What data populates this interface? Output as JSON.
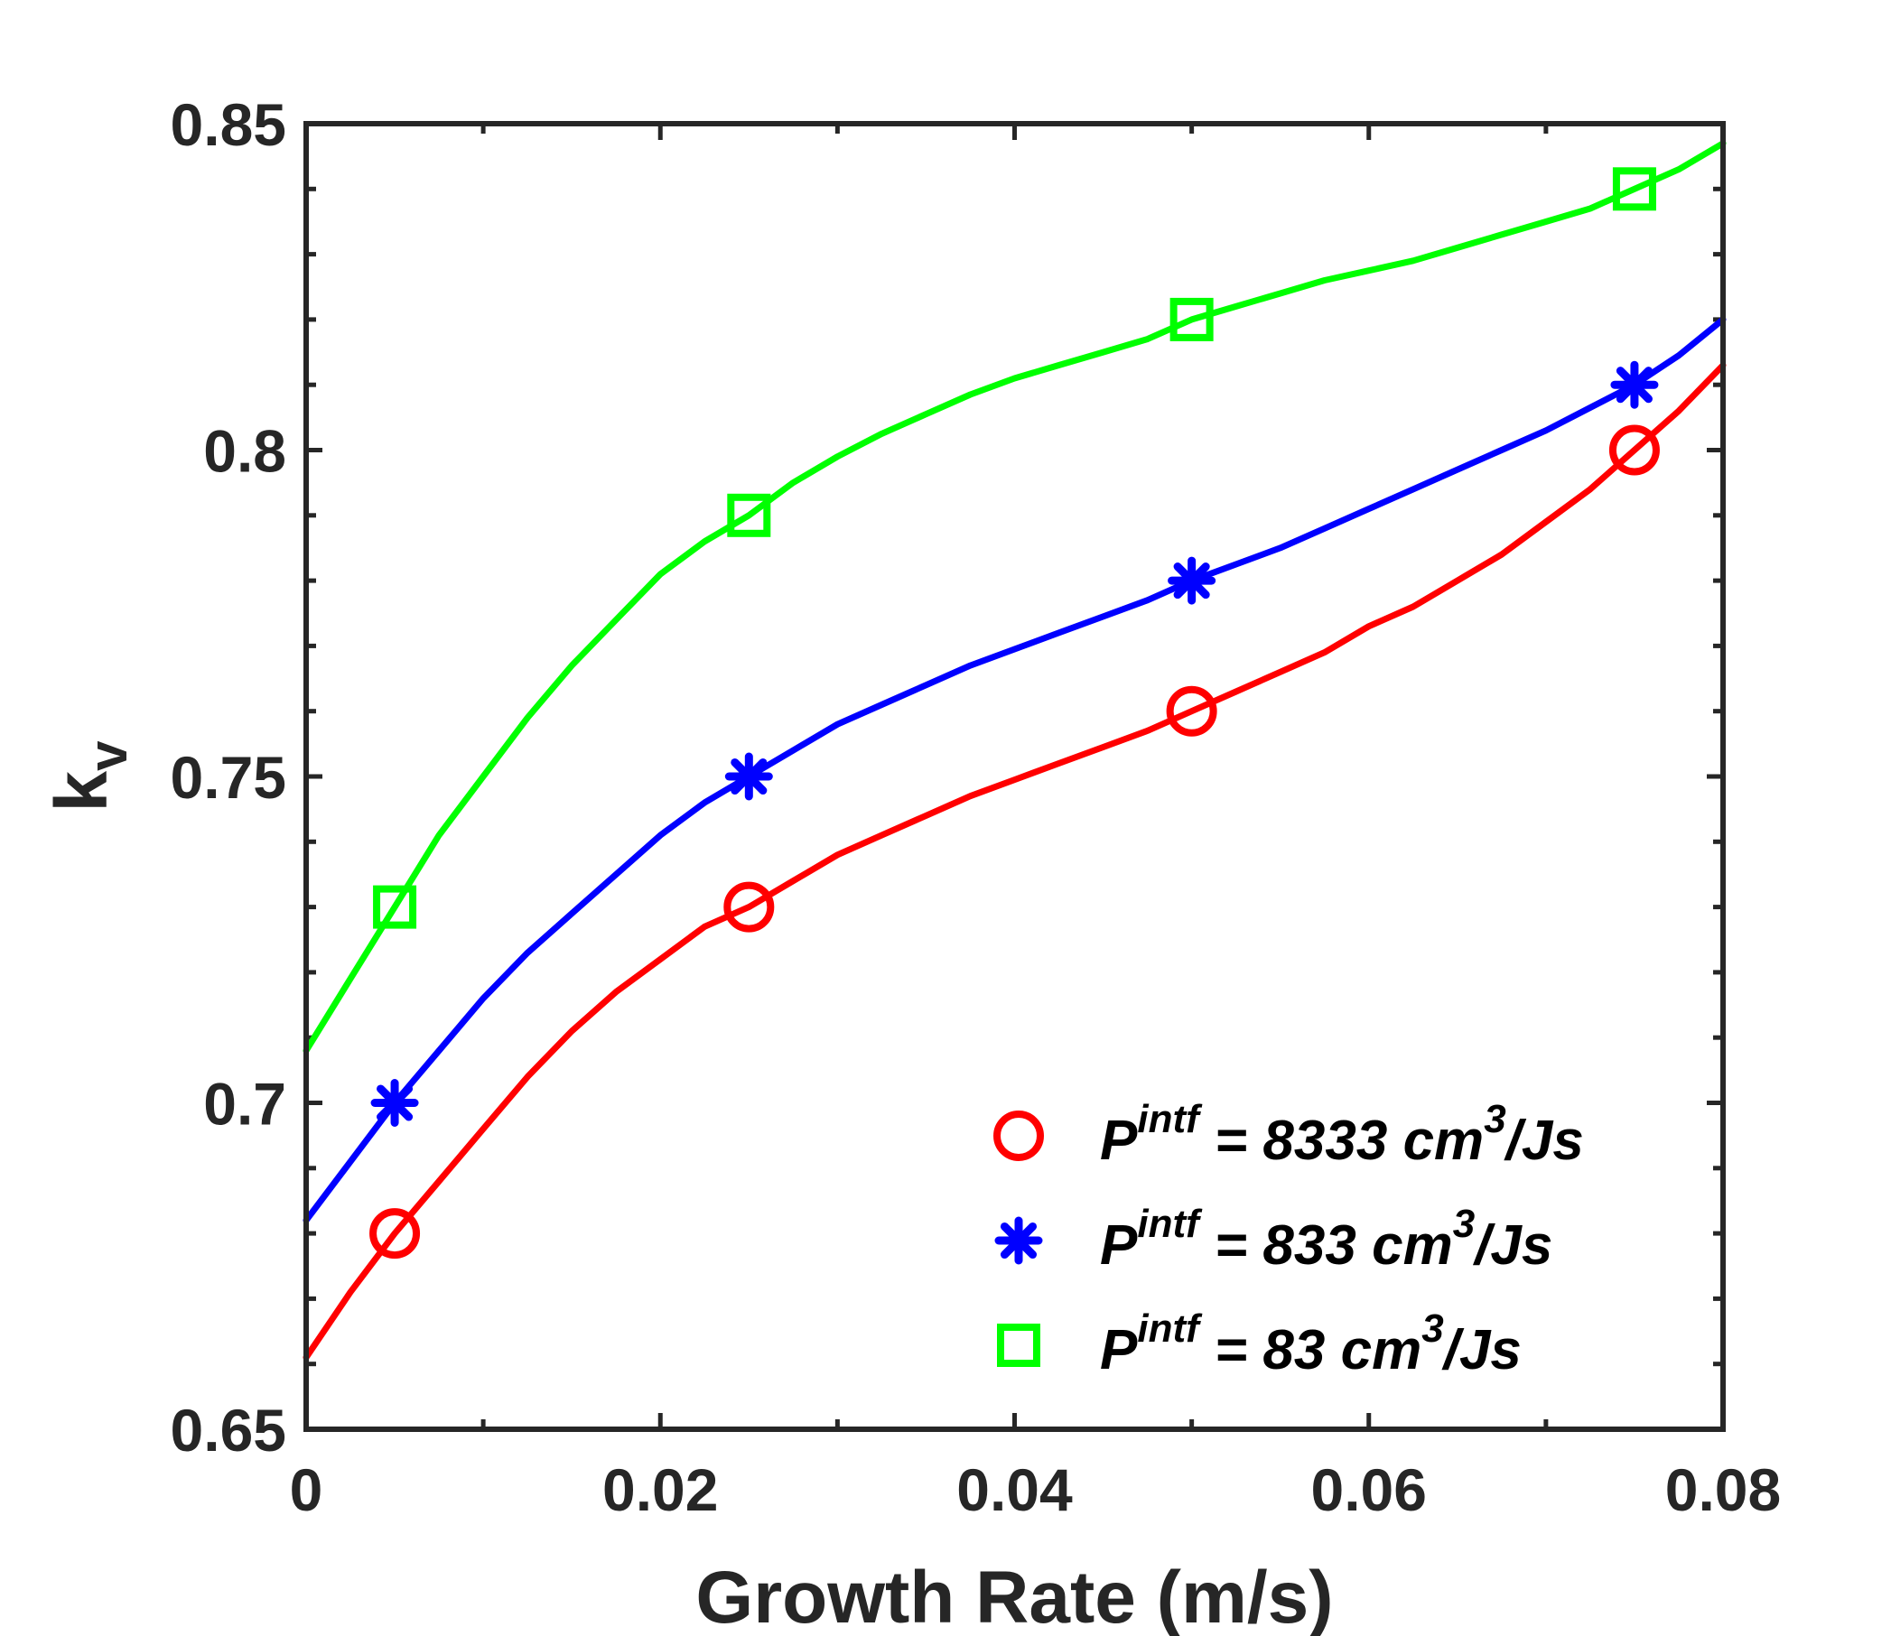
{
  "chart_data": {
    "type": "line",
    "title": "",
    "xlabel": "Growth Rate (m/s)",
    "ylabel_main": "k",
    "ylabel_sub": "v",
    "xlim": [
      0,
      0.08
    ],
    "ylim": [
      0.65,
      0.85
    ],
    "xticks": [
      0,
      0.02,
      0.04,
      0.06,
      0.08
    ],
    "xtick_labels": [
      "0",
      "0.02",
      "0.04",
      "0.06",
      "0.08"
    ],
    "yticks": [
      0.65,
      0.7,
      0.75,
      0.8,
      0.85
    ],
    "ytick_labels": [
      "0.65",
      "0.7",
      "0.75",
      "0.8",
      "0.85"
    ],
    "grid": false,
    "legend_position": "bottom-right",
    "series": [
      {
        "name": "P^intf = 8333 cm^3/Js",
        "legend": {
          "base": "P",
          "sup1": "intf",
          "mid": " = 8333 cm",
          "sup2": "3",
          "tail": "/Js"
        },
        "color": "#ff0000",
        "marker": "circle",
        "points_x": [
          0.005,
          0.025,
          0.05,
          0.075
        ],
        "points_y": [
          0.68,
          0.73,
          0.76,
          0.8
        ],
        "curve_x": [
          0,
          0.0025,
          0.005,
          0.0075,
          0.01,
          0.0125,
          0.015,
          0.0175,
          0.02,
          0.0225,
          0.025,
          0.0275,
          0.03,
          0.0325,
          0.035,
          0.0375,
          0.04,
          0.0425,
          0.045,
          0.0475,
          0.05,
          0.0525,
          0.055,
          0.0575,
          0.06,
          0.0625,
          0.065,
          0.0675,
          0.07,
          0.0725,
          0.075,
          0.0775,
          0.08
        ],
        "curve_y": [
          0.661,
          0.671,
          0.68,
          0.688,
          0.696,
          0.704,
          0.711,
          0.717,
          0.722,
          0.727,
          0.73,
          0.734,
          0.738,
          0.741,
          0.744,
          0.747,
          0.7495,
          0.752,
          0.7545,
          0.757,
          0.76,
          0.763,
          0.766,
          0.769,
          0.773,
          0.776,
          0.78,
          0.784,
          0.789,
          0.794,
          0.8,
          0.806,
          0.813
        ]
      },
      {
        "name": "P^intf = 833 cm^3/Js",
        "legend": {
          "base": "P",
          "sup1": "intf",
          "mid": " = 833 cm",
          "sup2": "3",
          "tail": "/Js"
        },
        "color": "#0000ff",
        "marker": "asterisk",
        "points_x": [
          0.005,
          0.025,
          0.05,
          0.075
        ],
        "points_y": [
          0.7,
          0.75,
          0.78,
          0.81
        ],
        "curve_x": [
          0,
          0.0025,
          0.005,
          0.0075,
          0.01,
          0.0125,
          0.015,
          0.0175,
          0.02,
          0.0225,
          0.025,
          0.0275,
          0.03,
          0.0325,
          0.035,
          0.0375,
          0.04,
          0.0425,
          0.045,
          0.0475,
          0.05,
          0.0525,
          0.055,
          0.0575,
          0.06,
          0.0625,
          0.065,
          0.0675,
          0.07,
          0.0725,
          0.075,
          0.0775,
          0.08
        ],
        "curve_y": [
          0.682,
          0.691,
          0.7,
          0.708,
          0.716,
          0.723,
          0.729,
          0.735,
          0.741,
          0.746,
          0.75,
          0.754,
          0.758,
          0.761,
          0.764,
          0.767,
          0.7695,
          0.772,
          0.7745,
          0.777,
          0.78,
          0.7825,
          0.785,
          0.788,
          0.791,
          0.794,
          0.797,
          0.8,
          0.803,
          0.8065,
          0.81,
          0.8145,
          0.82
        ]
      },
      {
        "name": "P^intf = 83 cm^3/Js",
        "legend": {
          "base": "P",
          "sup1": "intf",
          "mid": " = 83 cm",
          "sup2": "3",
          "tail": "/Js"
        },
        "color": "#00ff00",
        "marker": "square",
        "points_x": [
          0.005,
          0.025,
          0.05,
          0.075
        ],
        "points_y": [
          0.73,
          0.79,
          0.82,
          0.84
        ],
        "curve_x": [
          0,
          0.0025,
          0.005,
          0.0075,
          0.01,
          0.0125,
          0.015,
          0.0175,
          0.02,
          0.0225,
          0.025,
          0.0275,
          0.03,
          0.0325,
          0.035,
          0.0375,
          0.04,
          0.0425,
          0.045,
          0.0475,
          0.05,
          0.0525,
          0.055,
          0.0575,
          0.06,
          0.0625,
          0.065,
          0.0675,
          0.07,
          0.0725,
          0.075,
          0.0775,
          0.08
        ],
        "curve_y": [
          0.708,
          0.719,
          0.73,
          0.741,
          0.75,
          0.759,
          0.767,
          0.774,
          0.781,
          0.786,
          0.79,
          0.795,
          0.799,
          0.8025,
          0.8055,
          0.8085,
          0.811,
          0.813,
          0.815,
          0.817,
          0.82,
          0.822,
          0.824,
          0.826,
          0.8275,
          0.829,
          0.831,
          0.833,
          0.835,
          0.837,
          0.84,
          0.843,
          0.847
        ]
      }
    ]
  }
}
